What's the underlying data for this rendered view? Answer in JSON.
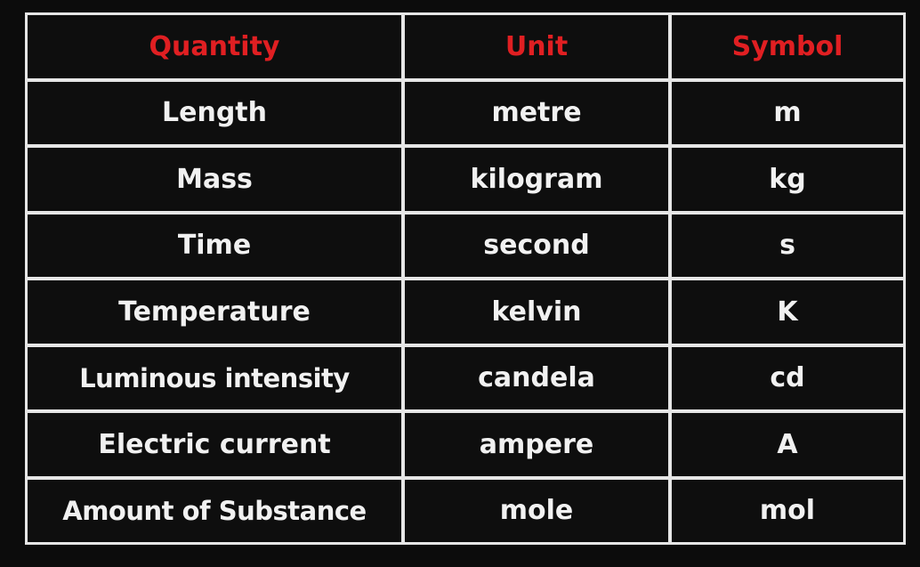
{
  "table": {
    "headers": [
      "Quantity",
      "Unit",
      "Symbol"
    ],
    "rows": [
      [
        "Length",
        "metre",
        "m"
      ],
      [
        "Mass",
        "kilogram",
        "kg"
      ],
      [
        "Time",
        "second",
        "s"
      ],
      [
        "Temperature",
        "kelvin",
        "K"
      ],
      [
        "Luminous intensity",
        "candela",
        "cd"
      ],
      [
        "Electric current",
        "ampere",
        "A"
      ],
      [
        "Amount of Substance",
        "mole",
        "mol"
      ]
    ]
  },
  "colors": {
    "header_text": "#e01f22",
    "body_text": "#f1f1f1",
    "cell_bg": "#0e0e0e",
    "grid_lines": "#e6e6e6"
  }
}
